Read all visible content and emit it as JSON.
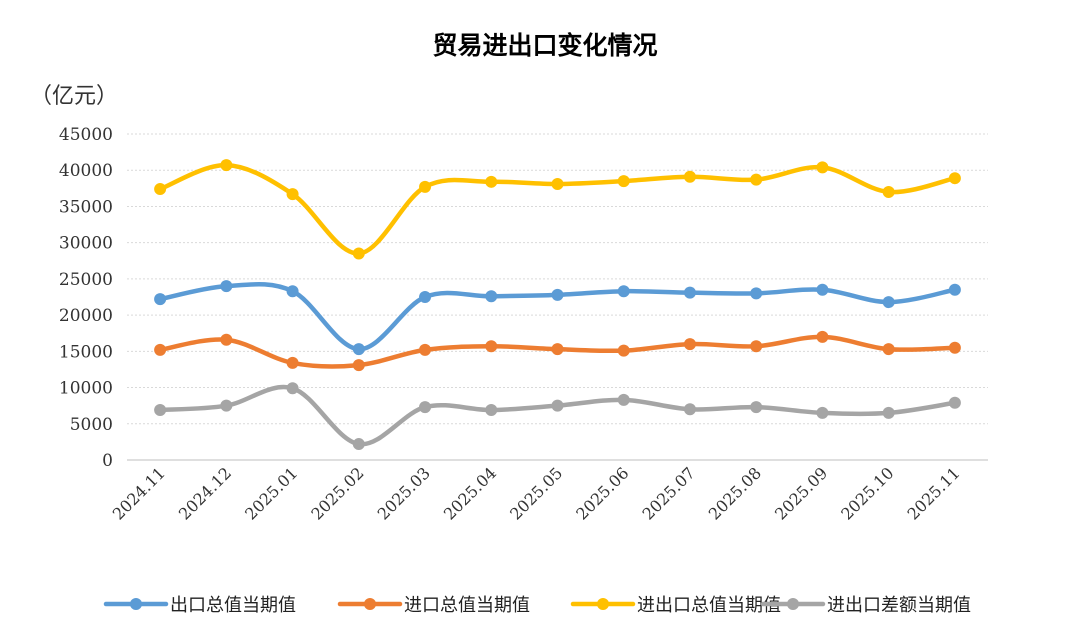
{
  "chart_data": {
    "type": "line",
    "title": "贸易进出口变化情况",
    "ylabel": "（亿元）",
    "xlabel": "",
    "ylim": [
      0,
      45000
    ],
    "yticks": [
      "0",
      "5000",
      "10000",
      "15000",
      "20000",
      "25000",
      "30000",
      "35000",
      "40000",
      "45000"
    ],
    "grid": true,
    "legend_position": "bottom",
    "categories": [
      "2024.11",
      "2024.12",
      "2025.01",
      "2025.02",
      "2025.03",
      "2025.04",
      "2025.05",
      "2025.06",
      "2025.07",
      "2025.08",
      "2025.09",
      "2025.10",
      "2025.11"
    ],
    "series": [
      {
        "name": "出口总值当期值",
        "color": "#5B9BD5",
        "values": [
          22200,
          24000,
          23300,
          15300,
          22500,
          22600,
          22800,
          23300,
          23100,
          23000,
          23500,
          21800,
          23500
        ]
      },
      {
        "name": "进口总值当期值",
        "color": "#ED7D31",
        "values": [
          15200,
          16600,
          13400,
          13100,
          15200,
          15700,
          15300,
          15100,
          16000,
          15700,
          17000,
          15300,
          15500
        ]
      },
      {
        "name": "进出口总值当期值",
        "color": "#FFC000",
        "values": [
          37400,
          40700,
          36700,
          28500,
          37700,
          38400,
          38100,
          38500,
          39100,
          38700,
          40400,
          37000,
          38900
        ]
      },
      {
        "name": "进出口差额当期值",
        "color": "#A5A5A5",
        "values": [
          6900,
          7500,
          9900,
          2200,
          7300,
          6900,
          7500,
          8300,
          7000,
          7300,
          6500,
          6500,
          7900
        ]
      }
    ]
  }
}
